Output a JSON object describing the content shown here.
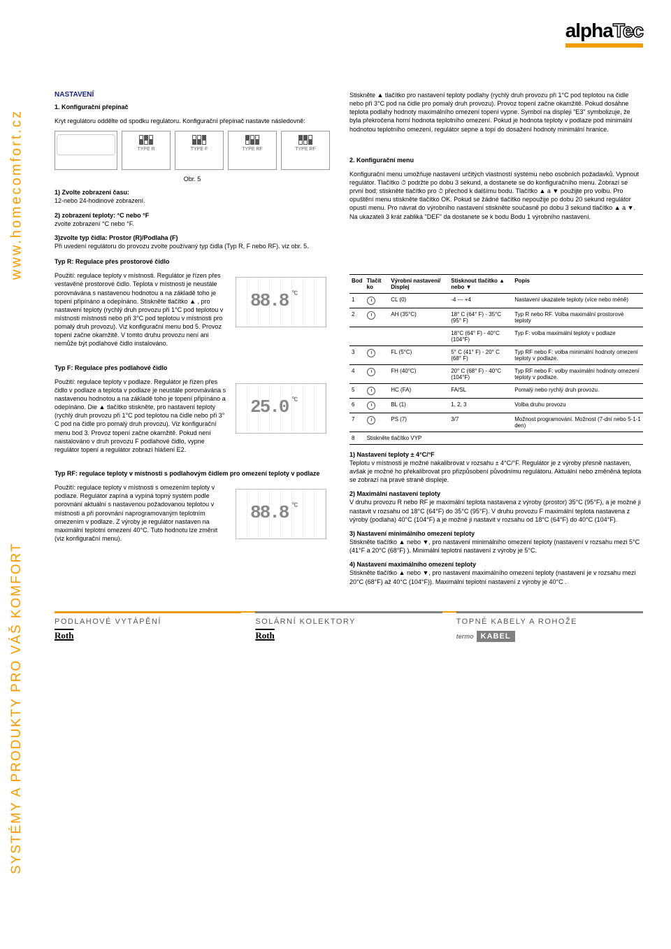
{
  "site": {
    "url": "www.homecomfort.cz",
    "slogan": "SYSTÉMY A PRODUKTY PRO VÁŠ KOMFORT"
  },
  "brand": {
    "a": "alpha",
    "b": "Tec",
    "bar_color": "#f39c00"
  },
  "colors": {
    "accent": "#f39c00",
    "heading": "#1a237e",
    "rail": "#808080"
  },
  "left": {
    "title_main": "NASTAVENÍ",
    "s1_title": "1. Konfigurační přepínač",
    "s1_p1": "Kryt regulátoru oddělte od spodku regulátoru. Konfigurační přepínač nastavte následovně:",
    "fig_types": [
      "TYPE R",
      "TYPE F",
      "TYPE RF",
      "TYPE RF"
    ],
    "fig_caption": "Obr. 5",
    "step1": "1) Zvolte zobrazení času:",
    "step1b": "12-nebo 24-hodinové zobrazení.",
    "step2_label": "2) zobrazení teploty: °C nebo °F",
    "step2_p": "zvolte zobrazení °C nebo °F.",
    "step3_label": "3)zvolte typ čidla: Prostor (R)/Podlaha (F)",
    "step3_p": "Při uvedení regulátoru do provozu zvolte používaný typ čidla (Typ R, F nebo RF). viz obr. 5.",
    "typeR_title": "Typ R: Regulace přes prostorové čidlo",
    "typeR_p": "Použití: regulace teploty v místnosti. Regulátor je řízen přes vestavěné prostorové čidlo. Teplota v místnosti je neustále porovnávána s nastavenou hodnotou a na základě toho je topení připínáno a odepínáno. Stiskněte tlačítko ▲ , pro nastavení teploty (rychlý druh provozu při 1°C pod teplotou v místnosti místnosti nebo při 3°C pod teplotou v místnosti pro pomalý druh provozu). Viz konfigurační menu bod 5. Provoz topení začne okamžitě. V tomto druhu provozu není ani nemůže být podlahové čidlo instalováno.",
    "typeF_title": "Typ F: Regulace přes podlahové čidlo",
    "typeF_p": "Použití: regulace teploty v podlaze. Regulátor je řízen přes čidlo v podlaze a teplota v podlaze je neustále porovnávána s nastavenou hodnotou a na základě toho je topení připínáno a odepínáno. Die ▲ tlačítko stiskněte, pro nastavení teploty (rychlý druh provozu při 1°C pod teplotou na čidle nebo při 3° C pod na čidle pro pomalý druh provozu). Viz konfigurační menu bod 3. Provoz topení začne okamžitě. Pokud není naistalováno v druh provozu F podlahové čidlo, vypne regulátor topení a regulátor zobrazí hlášení E2.",
    "typeRF_title": "Typ RF: regulace teploty v místnosti s podlahovým čidlem pro omezení teploty v podlaze",
    "typeRF_p": "Použití: regulace teploty v místnosti s omezením teploty v podlaze. Regulátor zapíná a vypíná topný systém podle porovnání aktuální s nastavenou požadovanou teplotou v místnosti a při porovnání naprogramovaným teplotním omezením v podlaze. Z výroby je regulátor nastaven na maximální teplotní omezení 40°C. Tuto hodnotu lze změnit (viz konfigurační menu).",
    "seg_r": "88.8",
    "seg_f": "25.0",
    "seg_rf": "88.8"
  },
  "right": {
    "intro_p": "Stiskněte ▲ tlačítko pro nastavení teploty podlahy (rychlý druh provozu při 1°C pod teplotou na čidle nebo při 3°C pod na čidle pro pomalý druh provozu). Provoz topení začne okamžitě. Pokud dosáhne teplota podlahy hodnoty maximálního omezení topení vypne. Symbol na displeji \"E3\" symbolizuje, že byla překročena horní hodnota teplotního omezení. Pokud je hodnota teploty v podlaze pod minimální hodnotou teplotního omezení, regulátor sepne a topí do dosažení hodnoty minimální hranice.",
    "menu_title": "2. Konfigurační menu",
    "menu_p": "Konfigurační menu umožňuje nastavení určitých vlastností systému nebo osobních požadavků. Vypnout regulátor. Tlačítko ⏱ podržte po dobu 3 sekund, a dostanete se do konfiguračního menu. Zobrazí se první bod; stiskněte tlačítko pro ⏱ přechod k dalšímu bodu. Tlačítko ▲ a ▼ použijte pro volbu. Pro opuštění menu stiskněte tlačítko OK. Pokud se žádné tlačítko nepoužije po dobu 20 sekund regulátor opustí menu. Pro návrat do výrobního nastavení stiskněte současně po dobu 3 sekund tlačítko ▲ a ▼. Na ukazateli 3 krát zabliká \"DEF\" da dostanete se k bodu Bodu 1 výrobního nastavení.",
    "table": {
      "headers": [
        "Bod",
        "Tlačít ko",
        "Výrobní nastavení/ Displej",
        "Stisknout tlačítko ▲ nebo ▼",
        "Popis"
      ],
      "rows": [
        {
          "b": "1",
          "d": "CL (0)",
          "r": "-4 --- +4",
          "p": "Nastavení ukazatele teploty (více nebo méně)"
        },
        {
          "b": "2",
          "d": "AH (35°C)",
          "r": "18° C (64° F) - 35°C (95° F)",
          "p": "Typ R nebo RF. Volba maximální prostorové teploty"
        },
        {
          "b": "",
          "d": "",
          "r": "18°C (64° F) - 40°C (104°F)",
          "p": "Typ F: volba maximální teploty v podlaze"
        },
        {
          "b": "3",
          "d": "FL (5°C)",
          "r": "5° C (41° F) - 20° C (68° F)",
          "p": "Typ RF nebo F: volba minimální hodnoty omezení teploty v podlaze."
        },
        {
          "b": "4",
          "d": "FH (40°C)",
          "r": "20° C (68° F) - 40°C (104°F)",
          "p": "Typ RF nebo F: volby maximální hodnoty omezení teploty v podlaze."
        },
        {
          "b": "5",
          "d": "HC (FA)",
          "r": "FA/SL",
          "p": "Pomalý nebo rychlý druh provozu."
        },
        {
          "b": "6",
          "d": "BL (1)",
          "r": "1, 2, 3",
          "p": "Volba druhu provozu"
        },
        {
          "b": "7",
          "d": "PS (7)",
          "r": "3/7",
          "p": "Možnost programování. Možnost (7-dní nebo 5-1-1 den)"
        },
        {
          "b": "8",
          "d": "Stiskněte tlačítko VYP",
          "r": "",
          "p": ""
        }
      ]
    },
    "n1_t": "1) Nastavení teploty ± 4°C/°F",
    "n1_p": "Teplotu v místnosti je možné nakalibrovat v rozsahu ± 4°C/°F. Regulátor je z výroby přesně nastaven, avšak je možné ho překalibrovat pro přizpůsobení původnímu regulátoru. Aktuální nebo změněná teplota se zobrazí na pravé straně displeje.",
    "n2_t": "2) Maximální nastavení teploty",
    "n2_p": "V druhu provozu R nebo RF je maximální teplota nastavena z výroby (prostor) 35°C (95°F), a je možné ji nastavit v rozsahu od 18°C (64°F) do 35°C (95°F). V druhu provozu F maximální teplota nastavena z výroby (podlaha) 40°C (104°F) a je možné ji nastavit v rozsahu od 18°C (64°F) do 40°C (104°F).",
    "n3_t": "3) Nastavení minimálního omezení teploty",
    "n3_p": "Stiskněte tlačítko ▲ nebo ▼, pro nastavení minimálního omezení teploty (nastavení v rozsahu mezi 5°C (41°F a 20°C (68°F) ). Minimální teplotní nastavení z výroby je 5°C.",
    "n4_t": "4) Nastavení maximálního omezení teploty",
    "n4_p": "Stiskněte tlačítko ▲ nebo ▼, pro nastavení maximálního omezení teploty (nastavení je v rozsahu mezi 20°C (68°F) až 40°C (104°F)). Maximální teplotní nastavení z výroby je 40°C ."
  },
  "footer": {
    "cols": [
      {
        "title": "PODLAHOVÉ VYTÁPĚNÍ",
        "logo": "Roth"
      },
      {
        "title": "SOLÁRNÍ KOLEKTORY",
        "logo": "Roth"
      },
      {
        "title": "TOPNÉ KABELY A ROHOŽE",
        "logo": "termoKABEL"
      }
    ]
  }
}
